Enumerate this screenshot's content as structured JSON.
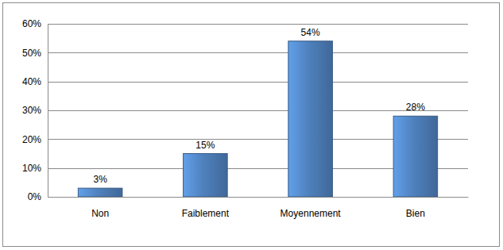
{
  "chart_data": {
    "type": "bar",
    "categories": [
      "Non",
      "Faiblement",
      "Moyennement",
      "Bien"
    ],
    "values": [
      3,
      15,
      54,
      28
    ],
    "value_labels": [
      "3%",
      "15%",
      "54%",
      "28%"
    ],
    "data_labels": true,
    "color": "#4f81bd",
    "ylim": [
      0,
      60
    ],
    "yticks": [
      {
        "value": 0,
        "label": "0%"
      },
      {
        "value": 10,
        "label": "10%"
      },
      {
        "value": 20,
        "label": "20%"
      },
      {
        "value": 30,
        "label": "30%"
      },
      {
        "value": 40,
        "label": "40%"
      },
      {
        "value": 50,
        "label": "50%"
      },
      {
        "value": 60,
        "label": "60%"
      }
    ],
    "grid": true
  }
}
